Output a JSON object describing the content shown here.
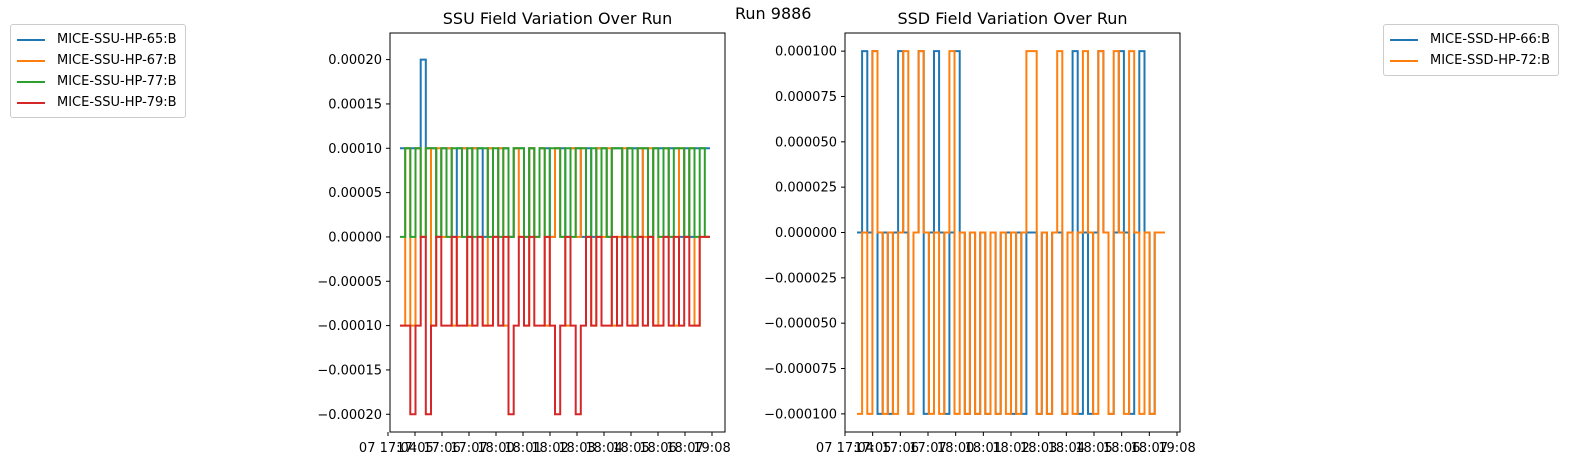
{
  "suptitle": "Run 9886",
  "chart_data": [
    {
      "type": "line",
      "title": "SSU Field Variation Over Run",
      "xlabel": "",
      "ylabel": "",
      "ylim": [
        -0.00022,
        0.00023
      ],
      "yticks": [
        "0.00020",
        "0.00015",
        "0.00010",
        "0.00005",
        "0.00000",
        "−0.00005",
        "−0.00010",
        "−0.00015",
        "−0.00020"
      ],
      "ytick_values": [
        0.0002,
        0.00015,
        0.0001,
        5e-05,
        0,
        -5e-05,
        -0.0001,
        -0.00015,
        -0.0002
      ],
      "xticks": [
        "07 17:04",
        "17:05",
        "17:06",
        "17:07",
        "18:00",
        "18:01",
        "18:02",
        "18:03",
        "18:04",
        "18:05",
        "18:06",
        "18:07",
        "19:08"
      ],
      "xlim": [
        0,
        100
      ],
      "legend": "outside-left",
      "series": [
        {
          "name": "MICE-SSU-HP-65:B",
          "color": "#1f77b4",
          "values": [
            0.0001,
            0.0001,
            0.0001,
            0.0001,
            0.0002,
            0.0001,
            0.0001,
            0,
            0.0001,
            0.0001,
            0,
            0.0001,
            0.0001,
            0,
            0.0001,
            0.0001,
            0,
            0.0001,
            0,
            0.0001,
            0.0001,
            0,
            0.0001,
            0.0001,
            0,
            0.0001,
            0,
            0.0001,
            0.0001,
            0,
            0.0001,
            0.0001,
            0,
            0.0001,
            0.0001,
            0,
            0.0001,
            0,
            0.0001,
            0.0001,
            0,
            0.0001,
            0.0001,
            0,
            0.0001,
            0.0001,
            0,
            0.0001,
            0,
            0.0001,
            0.0001,
            0,
            0.0001,
            0.0001,
            0,
            0.0001,
            0,
            0.0001,
            0.0001,
            0.0001
          ]
        },
        {
          "name": "MICE-SSU-HP-67:B",
          "color": "#ff7f0e",
          "values": [
            -0.0001,
            0.0001,
            -0.0001,
            0.0001,
            0,
            0.0001,
            -0.0001,
            0.0001,
            0,
            0.0001,
            -0.0001,
            0,
            0.0001,
            -0.0001,
            0.0001,
            0,
            -0.0001,
            0.0001,
            0,
            0.0001,
            -0.0001,
            0,
            0.0001,
            0,
            -0.0001,
            0.0001,
            0,
            0.0001,
            -0.0001,
            0,
            0.0001,
            0,
            -0.0001,
            0.0001,
            0,
            0.0001,
            0,
            -0.0001,
            0.0001,
            0,
            0.0001,
            -0.0001,
            0,
            0.0001,
            0,
            -0.0001,
            0.0001,
            0,
            0.0001,
            -0.0001,
            0,
            0.0001,
            0,
            -0.0001,
            0.0001,
            0,
            0.0001,
            -0.0001,
            0,
            0
          ]
        },
        {
          "name": "MICE-SSU-HP-77:B",
          "color": "#2ca02c",
          "values": [
            0,
            0.0001,
            0,
            0.0001,
            0,
            0.0001,
            0.0001,
            0,
            0.0001,
            0,
            0.0001,
            0.0001,
            0,
            0.0001,
            0,
            0.0001,
            0.0001,
            0,
            0.0001,
            0,
            0.0001,
            0,
            0.0001,
            0.0001,
            0,
            0.0001,
            0,
            0.0001,
            0,
            0.0001,
            0.0001,
            0,
            0.0001,
            0,
            0.0001,
            0.0001,
            0,
            0.0001,
            0,
            0.0001,
            0,
            0.0001,
            0.0001,
            0,
            0.0001,
            0,
            0.0001,
            0.0001,
            0,
            0.0001,
            0,
            0.0001,
            0,
            0.0001,
            0.0001,
            0,
            0.0001,
            0,
            0.0001,
            0
          ]
        },
        {
          "name": "MICE-SSU-HP-79:B",
          "color": "#d62728",
          "values": [
            -0.0001,
            -0.0001,
            -0.0002,
            -0.0001,
            0,
            -0.0002,
            -0.0001,
            0,
            -0.0001,
            -0.0001,
            0,
            -0.0001,
            -0.0001,
            0,
            -0.0001,
            0,
            -0.0001,
            -0.0001,
            0,
            -0.0001,
            0,
            -0.0002,
            -0.0001,
            0,
            -0.0001,
            0,
            -0.0001,
            -0.0001,
            0,
            -0.0001,
            -0.0002,
            -0.0001,
            0,
            -0.0001,
            -0.0002,
            -0.0001,
            0,
            -0.0001,
            0,
            -0.0001,
            -0.0001,
            0,
            -0.0001,
            0,
            -0.0001,
            -0.0001,
            0,
            -0.0001,
            0,
            -0.0001,
            -0.0001,
            0,
            -0.0001,
            0,
            -0.0001,
            0,
            -0.0001,
            -0.0001,
            0,
            0
          ]
        }
      ]
    },
    {
      "type": "line",
      "title": "SSD Field Variation Over Run",
      "xlabel": "",
      "ylabel": "",
      "ylim": [
        -0.00011,
        0.00011
      ],
      "yticks": [
        "0.000100",
        "0.000075",
        "0.000050",
        "0.000025",
        "0.000000",
        "−0.000025",
        "−0.000050",
        "−0.000075",
        "−0.000100"
      ],
      "ytick_values": [
        0.0001,
        7.5e-05,
        5e-05,
        2.5e-05,
        0,
        -2.5e-05,
        -5e-05,
        -7.5e-05,
        -0.0001
      ],
      "xticks": [
        "07 17:04",
        "17:05",
        "17:06",
        "17:07",
        "18:00",
        "18:01",
        "18:02",
        "18:03",
        "18:04",
        "18:05",
        "18:06",
        "18:07",
        "19:08"
      ],
      "xlim": [
        0,
        100
      ],
      "legend": "outside-right",
      "series": [
        {
          "name": "MICE-SSD-HP-66:B",
          "color": "#1f77b4",
          "values": [
            0,
            0.0001,
            0,
            0.0001,
            -0.0001,
            0,
            -0.0001,
            0,
            0.0001,
            0,
            -0.0001,
            0,
            0.0001,
            -0.0001,
            0,
            0.0001,
            0,
            -0.0001,
            0,
            0.0001,
            0,
            -0.0001,
            0,
            -0.0001,
            0,
            -0.0001,
            0,
            -0.0001,
            0,
            0,
            -0.0001,
            0,
            -0.0001,
            0,
            0,
            -0.0001,
            0,
            -0.0001,
            0,
            0,
            -0.0001,
            0,
            0.0001,
            -0.0001,
            0,
            -0.0001,
            0,
            0.0001,
            0,
            -0.0001,
            0,
            0.0001,
            0,
            -0.0001,
            0,
            0.0001,
            0,
            -0.0001,
            0,
            0
          ]
        },
        {
          "name": "MICE-SSD-HP-72:B",
          "color": "#ff7f0e",
          "values": [
            -0.0001,
            0,
            -0.0001,
            0.0001,
            0,
            -0.0001,
            0,
            -0.0001,
            0,
            0.0001,
            -0.0001,
            0,
            0.0001,
            0,
            -0.0001,
            0,
            -0.0001,
            0,
            0.0001,
            -0.0001,
            0,
            -0.0001,
            0,
            -0.0001,
            0,
            -0.0001,
            0,
            -0.0001,
            0,
            -0.0001,
            0,
            -0.0001,
            0,
            0.0001,
            0.0001,
            -0.0001,
            0,
            -0.0001,
            0,
            0.0001,
            -0.0001,
            0,
            -0.0001,
            0,
            0.0001,
            0,
            -0.0001,
            0.0001,
            0,
            -0.0001,
            0.0001,
            0,
            -0.0001,
            0.0001,
            0,
            -0.0001,
            0,
            -0.0001,
            0,
            0
          ]
        }
      ]
    }
  ]
}
